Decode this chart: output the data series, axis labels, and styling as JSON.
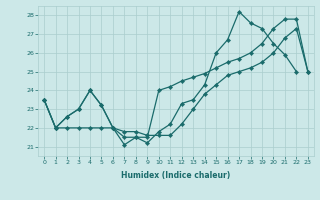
{
  "xlabel": "Humidex (Indice chaleur)",
  "bg_color": "#cce8e8",
  "grid_color": "#aacece",
  "line_color": "#1a6b6b",
  "xlim": [
    -0.5,
    23.5
  ],
  "ylim": [
    20.5,
    28.5
  ],
  "yticks": [
    21,
    22,
    23,
    24,
    25,
    26,
    27,
    28
  ],
  "xticks": [
    0,
    1,
    2,
    3,
    4,
    5,
    6,
    7,
    8,
    9,
    10,
    11,
    12,
    13,
    14,
    15,
    16,
    17,
    18,
    19,
    20,
    21,
    22,
    23
  ],
  "series1_x": [
    0,
    1,
    2,
    3,
    4,
    5,
    6,
    7,
    8,
    9,
    10,
    11,
    12,
    13,
    14,
    15,
    16,
    17,
    18,
    19,
    20,
    21,
    22
  ],
  "series1_y": [
    23.5,
    22.0,
    22.6,
    23.0,
    24.0,
    23.2,
    22.0,
    21.1,
    21.5,
    21.2,
    21.8,
    22.2,
    23.3,
    23.5,
    24.3,
    26.0,
    26.7,
    28.2,
    27.6,
    27.3,
    26.5,
    25.9,
    25.0
  ],
  "series2_x": [
    0,
    1,
    2,
    3,
    4,
    5,
    6,
    7,
    8,
    9,
    10,
    11,
    12,
    13,
    14,
    15,
    16,
    17,
    18,
    19,
    20,
    21,
    22,
    23
  ],
  "series2_y": [
    23.5,
    22.0,
    22.0,
    22.0,
    22.0,
    22.0,
    22.0,
    21.8,
    21.8,
    21.6,
    21.6,
    21.6,
    22.2,
    23.0,
    23.8,
    24.3,
    24.8,
    25.0,
    25.2,
    25.5,
    26.0,
    26.8,
    27.3,
    25.0
  ],
  "series3_x": [
    0,
    1,
    2,
    3,
    4,
    5,
    6,
    7,
    8,
    9,
    10,
    11,
    12,
    13,
    14,
    15,
    16,
    17,
    18,
    19,
    20,
    21,
    22,
    23
  ],
  "series3_y": [
    23.5,
    22.0,
    22.6,
    23.0,
    24.0,
    23.2,
    22.0,
    21.5,
    21.5,
    21.5,
    24.0,
    24.2,
    24.5,
    24.7,
    24.9,
    25.2,
    25.5,
    25.7,
    26.0,
    26.5,
    27.3,
    27.8,
    27.8,
    25.0
  ]
}
